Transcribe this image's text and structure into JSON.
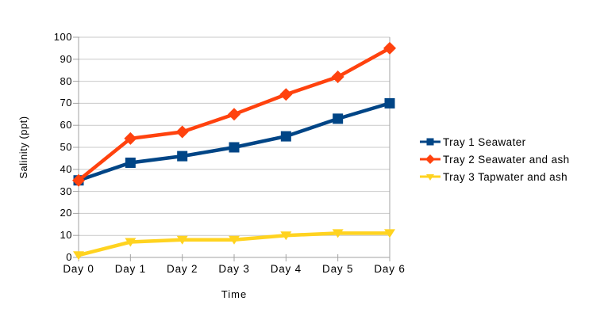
{
  "chart_data": {
    "type": "line",
    "title": "",
    "xlabel": "Time",
    "ylabel": "Salinity (ppt)",
    "categories": [
      "Day 0",
      "Day 1",
      "Day 2",
      "Day 3",
      "Day 4",
      "Day 5",
      "Day 6"
    ],
    "series": [
      {
        "name": "Tray 1 Seawater",
        "marker": "square",
        "color": "#004586",
        "values": [
          35,
          43,
          46,
          50,
          55,
          63,
          70
        ]
      },
      {
        "name": "Tray 2 Seawater and ash",
        "marker": "diamond",
        "color": "#ff420e",
        "values": [
          35,
          54,
          57,
          65,
          74,
          82,
          95
        ]
      },
      {
        "name": "Tray 3 Tapwater and ash",
        "marker": "triangle-down",
        "color": "#ffd320",
        "values": [
          1,
          7,
          8,
          8,
          10,
          11,
          11
        ]
      }
    ],
    "ylim": [
      0,
      100
    ],
    "y_ticks": [
      0,
      10,
      20,
      30,
      40,
      50,
      60,
      70,
      80,
      90,
      100
    ],
    "grid": "horizontal",
    "legend_position": "right",
    "colors": {
      "grid": "#c9c9c9",
      "axis": "#a3a3a3",
      "text": "#000000",
      "background": "#ffffff"
    }
  }
}
